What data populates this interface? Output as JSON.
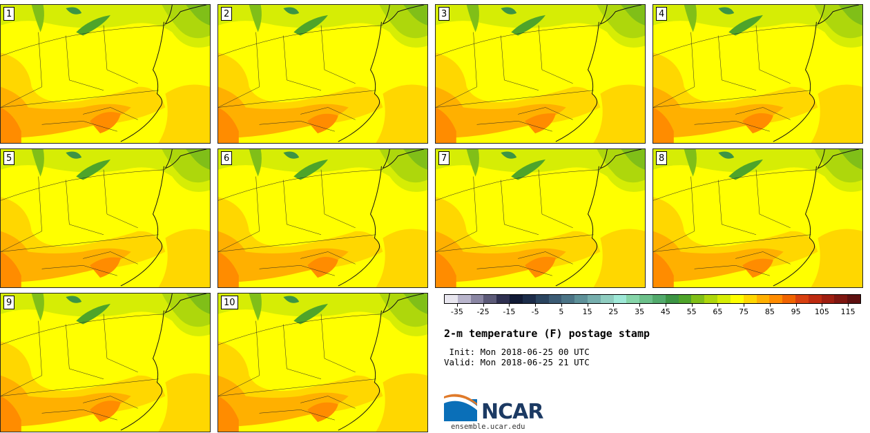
{
  "panels": [
    {
      "label": "1"
    },
    {
      "label": "2"
    },
    {
      "label": "3"
    },
    {
      "label": "4"
    },
    {
      "label": "5"
    },
    {
      "label": "6"
    },
    {
      "label": "7"
    },
    {
      "label": "8"
    },
    {
      "label": "9"
    },
    {
      "label": "10"
    }
  ],
  "colorbar": {
    "tick_labels": [
      "-35",
      "-25",
      "-15",
      "-5",
      "5",
      "15",
      "25",
      "35",
      "45",
      "55",
      "65",
      "75",
      "85",
      "95",
      "105",
      "115"
    ],
    "colors": [
      "#e8e6ef",
      "#b9b5cc",
      "#8a86a3",
      "#5c5a78",
      "#2f3050",
      "#111a35",
      "#1c2c49",
      "#2a445f",
      "#3b5b74",
      "#4b7486",
      "#5e9199",
      "#76aead",
      "#8fcdc0",
      "#9ee8d7",
      "#86d5a9",
      "#6cc08a",
      "#52aa6c",
      "#3c9444",
      "#4ea42a",
      "#80bf18",
      "#aed70c",
      "#d6ed05",
      "#ffff00",
      "#ffd700",
      "#ffb000",
      "#ff8c00",
      "#f06400",
      "#d84010",
      "#bd2a10",
      "#9e1e10",
      "#7e1610",
      "#5e1010"
    ],
    "range": [
      -40,
      120
    ]
  },
  "title": "2-m temperature (F) postage stamp",
  "init": " Init: Mon 2018-06-25 00 UTC",
  "valid": "Valid: Mon 2018-06-25 21 UTC",
  "logo": {
    "text": "NCAR",
    "site": "ensemble.ucar.edu"
  }
}
